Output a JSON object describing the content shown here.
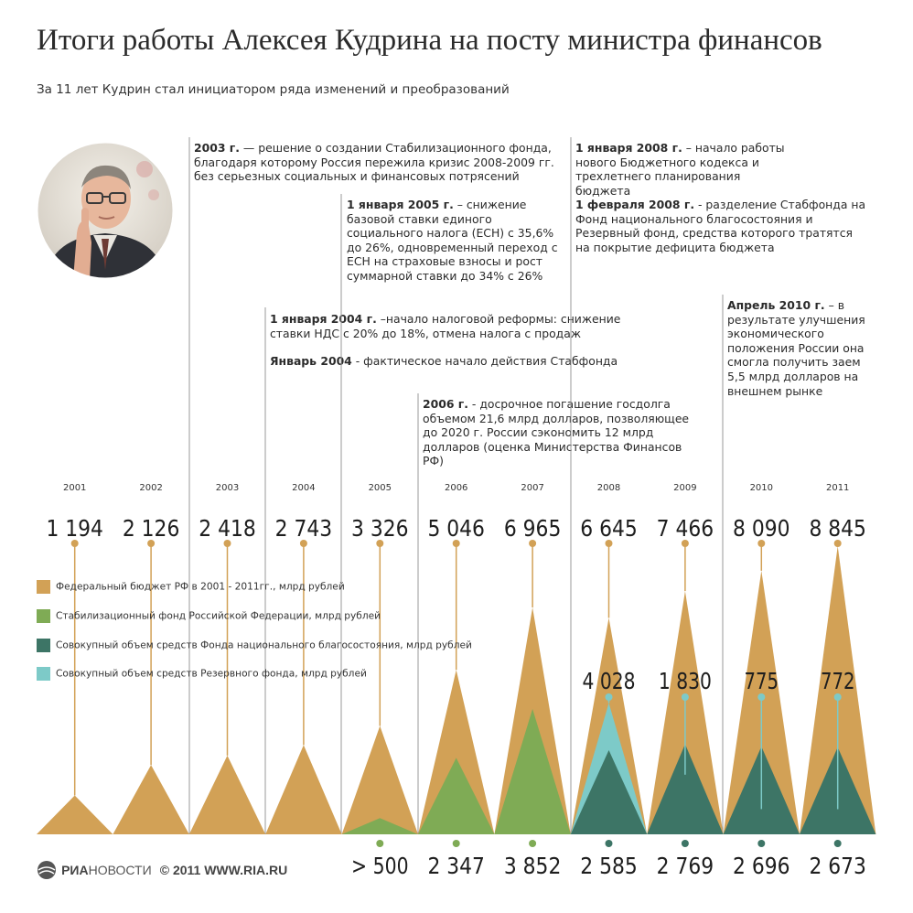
{
  "title": "Итоги работы Алексея Кудрина на посту министра финансов",
  "subtitle": "За 11 лет Кудрин стал инициатором ряда изменений и преобразований",
  "colors": {
    "budget": "#d2a156",
    "stab": "#7fab55",
    "fnb": "#3d7566",
    "reserve": "#7dcac8",
    "line": "#9a9a9a"
  },
  "events": [
    {
      "id": "e2003",
      "date": "2003 г.",
      "text": " — решение о создании Стабилизационного фонда, благодаря которому Россия пережила кризис 2008-2009 гг. без серьезных социальных и финансовых потрясений"
    },
    {
      "id": "e2005",
      "date": "1 января 2005 г.",
      "text": " – снижение базовой ставки единого социального налога (ЕСН) с 35,6% до 26%, одновременный переход с ЕСН на страховые взносы и рост суммарной ставки до 34% с 26%"
    },
    {
      "id": "e2004a",
      "date": "1 января 2004 г.",
      "text": " –начало налоговой реформы: снижение ставки НДС с 20% до 18%, отмена налога с продаж"
    },
    {
      "id": "e2004b",
      "date": "Январь 2004",
      "text": " - фактическое начало действия Стабфонда"
    },
    {
      "id": "e2006",
      "date": "2006 г.",
      "text": " - досрочное погашение госдолга объемом 21,6 млрд долларов, позволяющее до 2020 г. России сэкономить 12 млрд долларов (оценка Министерства Финансов РФ)"
    },
    {
      "id": "e2008a",
      "date": "1 января 2008 г.",
      "text": " – начало работы нового Бюджетного кодекса и трехлетнего планирования бюджета"
    },
    {
      "id": "e2008b",
      "date": "1 февраля 2008 г.",
      "text": " - разделение Стабфонда на Фонд национального благосостояния и Резервный фонд, средства которого тратятся на покрытие дефицита бюджета"
    },
    {
      "id": "e2010",
      "date": "Апрель 2010 г.",
      "text": " – в результате улучшения экономического положения России она смогла получить заем 5,5 млрд долларов на внешнем рынке"
    }
  ],
  "legend": [
    {
      "key": "budget",
      "label": "Федеральный бюджет РФ в 2001 - 2011гг., млрд рублей"
    },
    {
      "key": "stab",
      "label": "Стабилизационный фонд Российской Федерации, млрд рублей"
    },
    {
      "key": "fnb",
      "label": "Совокупный объем средств Фонда национального благосостояния, млрд рублей"
    },
    {
      "key": "reserve",
      "label": "Совокупный объем средств Резервного фонда, млрд рублей"
    }
  ],
  "footer": {
    "logo_a": "РИА",
    "logo_b": "НОВОСТИ",
    "copyright": "© 2011 WWW.RIA.RU"
  },
  "chart_data": {
    "type": "area",
    "x": [
      "2001",
      "2002",
      "2003",
      "2004",
      "2005",
      "2006",
      "2007",
      "2008",
      "2009",
      "2010",
      "2011"
    ],
    "series": [
      {
        "name": "Федеральный бюджет РФ в 2001 - 2011гг., млрд рублей",
        "key": "budget",
        "values": [
          1194,
          2126,
          2418,
          2743,
          3326,
          5046,
          6965,
          6645,
          7466,
          8090,
          8845
        ],
        "labels": [
          "1 194",
          "2 126",
          "2 418",
          "2 743",
          "3 326",
          "5 046",
          "6 965",
          "6 645",
          "7 466",
          "8 090",
          "8 845"
        ]
      },
      {
        "name": "Стабилизационный фонд Российской Федерации, млрд рублей",
        "key": "stab",
        "values": [
          null,
          null,
          null,
          null,
          500,
          2347,
          3852,
          null,
          null,
          null,
          null
        ],
        "labels": [
          null,
          null,
          null,
          null,
          "> 500",
          "2 347",
          "3 852",
          null,
          null,
          null,
          null
        ]
      },
      {
        "name": "Совокупный объем средств Фонда национального благосостояния, млрд рублей",
        "key": "fnb",
        "values": [
          null,
          null,
          null,
          null,
          null,
          null,
          null,
          2585,
          2769,
          2696,
          2673
        ],
        "labels": [
          null,
          null,
          null,
          null,
          null,
          null,
          null,
          "2 585",
          "2 769",
          "2 696",
          "2 673"
        ]
      },
      {
        "name": "Совокупный объем средств Резервного фонда, млрд рублей",
        "key": "reserve",
        "values": [
          null,
          null,
          null,
          null,
          null,
          null,
          null,
          4028,
          1830,
          775,
          772
        ],
        "labels": [
          null,
          null,
          null,
          null,
          null,
          null,
          null,
          "4 028",
          "1 830",
          "775",
          "772"
        ]
      }
    ],
    "ylim": [
      0,
      8845
    ],
    "grid": false,
    "legend": "left"
  }
}
